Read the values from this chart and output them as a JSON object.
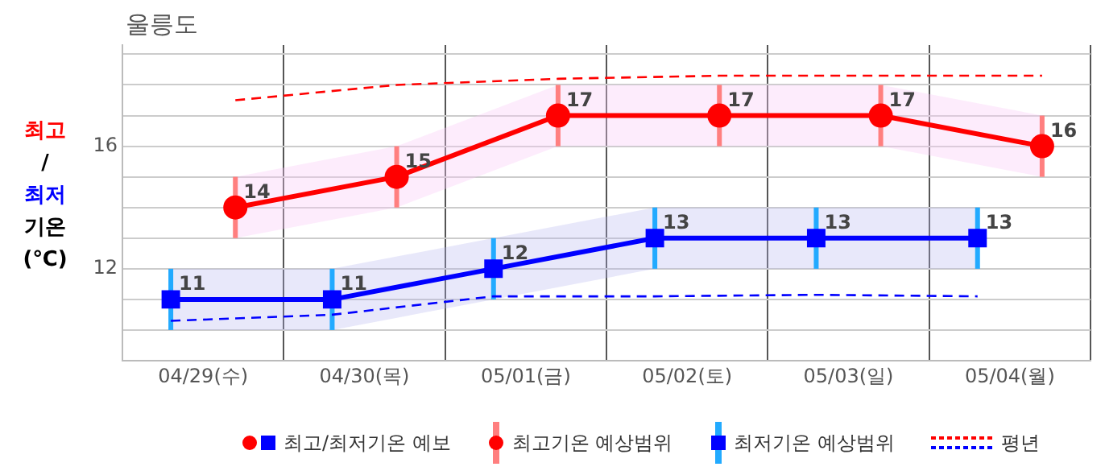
{
  "chart_data": {
    "type": "line",
    "title": "울릉도",
    "ylabel": "최고/최저 기온 (℃)",
    "categories": [
      "04/29(수)",
      "04/30(목)",
      "05/01(금)",
      "05/02(토)",
      "05/03(일)",
      "05/04(월)"
    ],
    "ylim": [
      9,
      19.3
    ],
    "yticks": [
      {
        "value": 9,
        "label": null
      },
      {
        "value": 10,
        "label": null
      },
      {
        "value": 11,
        "label": null
      },
      12,
      {
        "value": 13,
        "label": null
      },
      {
        "value": 14,
        "label": null
      },
      {
        "value": 15,
        "label": null
      },
      16,
      {
        "value": 17,
        "label": null
      },
      {
        "value": 18,
        "label": null
      },
      {
        "value": 19,
        "label": null
      }
    ],
    "grid": true,
    "legend": false,
    "series": [
      {
        "color": "#ff0000",
        "marker": "circle",
        "line_style": "solid",
        "data_labels": true,
        "values": [
          14,
          15,
          17,
          17,
          17,
          16
        ],
        "errors": [
          [
            13,
            15
          ],
          [
            14,
            16
          ],
          [
            16,
            18
          ],
          [
            16,
            18
          ],
          [
            16,
            18
          ],
          [
            15,
            17
          ]
        ],
        "lower": [
          13,
          14,
          16,
          16,
          16,
          15
        ],
        "upper": [
          15,
          16,
          18,
          18,
          18,
          17
        ]
      },
      {
        "color": "#0000ff",
        "marker": "square",
        "line_style": "solid",
        "data_labels": true,
        "values": [
          11,
          11,
          12,
          13,
          13,
          13
        ],
        "errors": [
          [
            10,
            12
          ],
          [
            10,
            12
          ],
          [
            11,
            13
          ],
          [
            12,
            14
          ],
          [
            12,
            14
          ],
          [
            12,
            14
          ]
        ],
        "lower": [
          10,
          10,
          11,
          12,
          12,
          12
        ],
        "upper": [
          12,
          12,
          13,
          14,
          14,
          14
        ]
      },
      {
        "color": "#ff0000",
        "marker": "none",
        "line_style": "dashed",
        "values": [
          17.5,
          18.0,
          18.2,
          18.3,
          18.3,
          18.3
        ]
      },
      {
        "color": "#0000ff",
        "marker": "none",
        "line_style": "dashed",
        "values": [
          10.3,
          10.5,
          11.1,
          11.1,
          11.15,
          11.1
        ]
      }
    ],
    "annotations": [
      "최고/최저기온 예보",
      "최고기온 예상범위",
      "최저기온 예상범위",
      "평년"
    ]
  }
}
